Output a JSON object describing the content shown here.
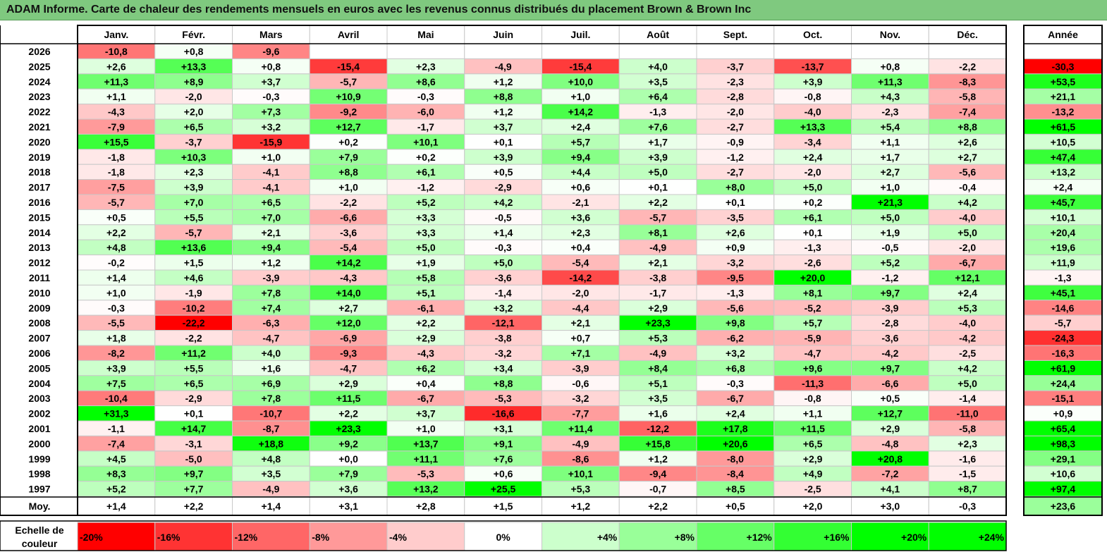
{
  "title": "ADAM Informe. Carte de chaleur des rendements mensuels en euros avec les revenus connus distribués du placement Brown & Brown Inc",
  "colors": {
    "title_bg": "#7fc97f",
    "neg_max": "#ff0000",
    "neutral": "#ffffff",
    "pos_max": "#00ff00",
    "grid": "#c8c8c8",
    "border": "#000000"
  },
  "chart_data": {
    "type": "heatmap",
    "months": [
      "Janv.",
      "Févr.",
      "Mars",
      "Avril",
      "Mai",
      "Juin",
      "Juil.",
      "Août",
      "Sept.",
      "Oct.",
      "Nov.",
      "Déc."
    ],
    "year_header": "Année",
    "avg_label": "Moy.",
    "rows": [
      {
        "year": "2026",
        "values": [
          "-10,8",
          "+0,8",
          "-9,6",
          "",
          "",
          "",
          "",
          "",
          "",
          "",
          "",
          ""
        ],
        "total": ""
      },
      {
        "year": "2025",
        "values": [
          "+2,6",
          "+13,3",
          "+0,8",
          "-15,4",
          "+2,3",
          "-4,9",
          "-15,4",
          "+4,0",
          "-3,7",
          "-13,7",
          "+0,8",
          "-2,2"
        ],
        "total": "-30,3"
      },
      {
        "year": "2024",
        "values": [
          "+11,3",
          "+8,9",
          "+3,7",
          "-5,7",
          "+8,6",
          "+1,2",
          "+10,0",
          "+3,5",
          "-2,3",
          "+3,9",
          "+11,3",
          "-8,3"
        ],
        "total": "+53,5"
      },
      {
        "year": "2023",
        "values": [
          "+1,1",
          "-2,0",
          "-0,3",
          "+10,9",
          "-0,3",
          "+8,8",
          "+1,0",
          "+6,4",
          "-2,8",
          "-0,8",
          "+4,3",
          "-5,8"
        ],
        "total": "+21,1"
      },
      {
        "year": "2022",
        "values": [
          "-4,3",
          "+2,0",
          "+7,3",
          "-9,2",
          "-6,0",
          "+1,2",
          "+14,2",
          "-1,3",
          "-2,0",
          "-4,0",
          "-2,3",
          "-7,4"
        ],
        "total": "-13,2"
      },
      {
        "year": "2021",
        "values": [
          "-7,9",
          "+6,5",
          "+3,2",
          "+12,7",
          "-1,7",
          "+3,7",
          "+2,4",
          "+7,6",
          "-2,7",
          "+13,3",
          "+5,4",
          "+8,8"
        ],
        "total": "+61,5"
      },
      {
        "year": "2020",
        "values": [
          "+15,5",
          "-3,7",
          "-15,9",
          "+0,2",
          "+10,1",
          "+0,1",
          "+5,7",
          "+1,7",
          "-0,9",
          "-3,4",
          "+1,1",
          "+2,6"
        ],
        "total": "+10,5"
      },
      {
        "year": "2019",
        "values": [
          "-1,8",
          "+10,3",
          "+1,0",
          "+7,9",
          "+0,2",
          "+3,9",
          "+9,4",
          "+3,9",
          "-1,2",
          "+2,4",
          "+1,7",
          "+2,7"
        ],
        "total": "+47,4"
      },
      {
        "year": "2018",
        "values": [
          "-1,8",
          "+2,3",
          "-4,1",
          "+8,8",
          "+6,1",
          "+0,5",
          "+4,4",
          "+5,0",
          "-2,7",
          "-2,0",
          "+2,7",
          "-5,6"
        ],
        "total": "+13,2"
      },
      {
        "year": "2017",
        "values": [
          "-7,5",
          "+3,9",
          "-4,1",
          "+1,0",
          "-1,2",
          "-2,9",
          "+0,6",
          "+0,1",
          "+8,0",
          "+5,0",
          "+1,0",
          "-0,4"
        ],
        "total": "+2,4"
      },
      {
        "year": "2016",
        "values": [
          "-5,7",
          "+7,0",
          "+6,5",
          "-2,2",
          "+5,2",
          "+4,2",
          "-2,1",
          "+2,2",
          "+0,1",
          "+0,2",
          "+21,3",
          "+4,2"
        ],
        "total": "+45,7"
      },
      {
        "year": "2015",
        "values": [
          "+0,5",
          "+5,5",
          "+7,0",
          "-6,6",
          "+3,3",
          "-0,5",
          "+3,6",
          "-5,7",
          "-3,5",
          "+6,1",
          "+5,0",
          "-4,0"
        ],
        "total": "+10,1"
      },
      {
        "year": "2014",
        "values": [
          "+2,2",
          "-5,7",
          "+2,1",
          "-3,6",
          "+3,3",
          "+1,4",
          "+2,3",
          "+8,1",
          "+2,6",
          "+0,1",
          "+1,9",
          "+5,0"
        ],
        "total": "+20,4"
      },
      {
        "year": "2013",
        "values": [
          "+4,8",
          "+13,6",
          "+9,4",
          "-5,4",
          "+5,0",
          "-0,3",
          "+0,4",
          "-4,9",
          "+0,9",
          "-1,3",
          "-0,5",
          "-2,0"
        ],
        "total": "+19,6"
      },
      {
        "year": "2012",
        "values": [
          "-0,2",
          "+1,5",
          "+1,2",
          "+14,2",
          "+1,9",
          "+5,0",
          "-5,4",
          "+2,1",
          "-3,2",
          "-2,6",
          "+5,2",
          "-6,7"
        ],
        "total": "+11,9"
      },
      {
        "year": "2011",
        "values": [
          "+1,4",
          "+4,6",
          "-3,9",
          "-4,3",
          "+5,8",
          "-3,6",
          "-14,2",
          "-3,8",
          "-9,5",
          "+20,0",
          "-1,2",
          "+12,1"
        ],
        "total": "-1,3"
      },
      {
        "year": "2010",
        "values": [
          "+1,0",
          "-1,9",
          "+7,8",
          "+14,0",
          "+5,1",
          "-1,4",
          "-2,0",
          "-1,7",
          "-1,3",
          "+8,1",
          "+9,7",
          "+2,4"
        ],
        "total": "+45,1"
      },
      {
        "year": "2009",
        "values": [
          "-0,3",
          "-10,2",
          "+7,4",
          "+2,7",
          "-6,1",
          "+3,2",
          "-4,4",
          "+2,9",
          "-5,6",
          "-5,2",
          "-3,9",
          "+5,3"
        ],
        "total": "-14,6"
      },
      {
        "year": "2008",
        "values": [
          "-5,5",
          "-22,2",
          "-6,3",
          "+12,0",
          "+2,2",
          "-12,1",
          "+2,1",
          "+23,3",
          "+9,8",
          "+5,7",
          "-2,8",
          "-4,0"
        ],
        "total": "-5,7"
      },
      {
        "year": "2007",
        "values": [
          "+1,8",
          "-2,2",
          "-4,7",
          "-6,9",
          "+2,9",
          "-3,8",
          "+0,7",
          "+5,3",
          "-6,2",
          "-5,9",
          "-3,6",
          "-4,2"
        ],
        "total": "-24,3"
      },
      {
        "year": "2006",
        "values": [
          "-8,2",
          "+11,2",
          "+4,0",
          "-9,3",
          "-4,3",
          "-3,2",
          "+7,1",
          "-4,9",
          "+3,2",
          "-4,7",
          "-4,2",
          "-2,5"
        ],
        "total": "-16,3"
      },
      {
        "year": "2005",
        "values": [
          "+3,9",
          "+5,5",
          "+1,6",
          "-4,7",
          "+6,2",
          "+3,4",
          "-3,9",
          "+8,4",
          "+6,8",
          "+9,6",
          "+9,7",
          "+4,2"
        ],
        "total": "+61,9"
      },
      {
        "year": "2004",
        "values": [
          "+7,5",
          "+6,5",
          "+6,9",
          "+2,9",
          "+0,4",
          "+8,8",
          "-0,6",
          "+5,1",
          "-0,3",
          "-11,3",
          "-6,6",
          "+5,0"
        ],
        "total": "+24,4"
      },
      {
        "year": "2003",
        "values": [
          "-10,4",
          "-2,9",
          "+7,8",
          "+11,5",
          "-6,7",
          "-5,3",
          "-3,2",
          "+3,5",
          "-6,7",
          "-0,8",
          "+0,5",
          "-1,4"
        ],
        "total": "-15,1"
      },
      {
        "year": "2002",
        "values": [
          "+31,3",
          "+0,1",
          "-10,7",
          "+2,2",
          "+3,7",
          "-16,6",
          "-7,7",
          "+1,6",
          "+2,4",
          "+1,1",
          "+12,7",
          "-11,0"
        ],
        "total": "+0,9"
      },
      {
        "year": "2001",
        "values": [
          "-1,1",
          "+14,7",
          "-8,7",
          "+23,3",
          "+1,0",
          "+3,1",
          "+11,4",
          "-12,2",
          "+17,8",
          "+11,5",
          "+2,9",
          "-5,8"
        ],
        "total": "+65,4"
      },
      {
        "year": "2000",
        "values": [
          "-7,4",
          "-3,1",
          "+18,8",
          "+9,2",
          "+13,7",
          "+9,1",
          "-4,9",
          "+15,8",
          "+20,6",
          "+6,5",
          "-4,8",
          "+2,3"
        ],
        "total": "+98,3"
      },
      {
        "year": "1999",
        "values": [
          "+4,5",
          "-5,0",
          "+4,8",
          "+0,0",
          "+11,1",
          "+7,6",
          "-8,6",
          "+1,2",
          "-8,0",
          "+2,9",
          "+20,8",
          "-1,6"
        ],
        "total": "+29,1"
      },
      {
        "year": "1998",
        "values": [
          "+8,3",
          "+9,7",
          "+3,5",
          "+7,9",
          "-5,3",
          "+0,6",
          "+10,1",
          "-9,4",
          "-8,4",
          "+4,9",
          "-7,2",
          "-1,5"
        ],
        "total": "+10,6"
      },
      {
        "year": "1997",
        "values": [
          "+5,2",
          "+7,7",
          "-4,9",
          "+3,6",
          "+13,2",
          "+25,5",
          "+5,3",
          "-0,7",
          "+8,5",
          "-2,5",
          "+4,1",
          "+8,7"
        ],
        "total": "+97,4"
      }
    ],
    "averages": [
      "+1,4",
      "+2,2",
      "+1,4",
      "+3,1",
      "+2,8",
      "+1,5",
      "+1,2",
      "+2,2",
      "+0,5",
      "+2,0",
      "+3,0",
      "-0,3"
    ],
    "average_total": "+23,6",
    "scale_label_line1": "Echelle de",
    "scale_label_line2": "couleur",
    "scale": [
      {
        "label": "-20%",
        "value": -20
      },
      {
        "label": "-16%",
        "value": -16
      },
      {
        "label": "-12%",
        "value": -12
      },
      {
        "label": "-8%",
        "value": -8
      },
      {
        "label": "-4%",
        "value": -4
      },
      {
        "label": "0%",
        "value": 0
      },
      {
        "label": "+4%",
        "value": 4
      },
      {
        "label": "+8%",
        "value": 8
      },
      {
        "label": "+12%",
        "value": 12
      },
      {
        "label": "+16%",
        "value": 16
      },
      {
        "label": "+20%",
        "value": 20
      },
      {
        "label": "+24%",
        "value": 24
      }
    ],
    "cell_color_range": [
      -20,
      20
    ],
    "total_color_range": [
      -30,
      60
    ]
  }
}
